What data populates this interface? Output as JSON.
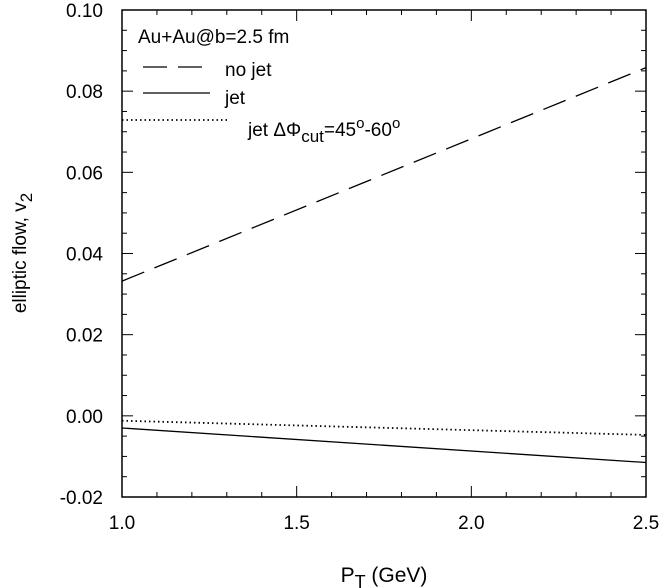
{
  "chart_data": {
    "type": "line",
    "annotation": "Au+Au@b=2.5 fm",
    "xlabel": {
      "main": "P",
      "sub": "T",
      "rest": " (GeV)"
    },
    "ylabel": {
      "main": "elliptic flow, v",
      "sub": "2"
    },
    "xlim": [
      1.0,
      2.5
    ],
    "ylim": [
      -0.02,
      0.1
    ],
    "xticks": [
      1.0,
      1.5,
      2.0,
      2.5
    ],
    "xtick_labels": [
      "1.0",
      "1.5",
      "2.0",
      "2.5"
    ],
    "yticks": [
      -0.02,
      0.0,
      0.02,
      0.04,
      0.06,
      0.08,
      0.1
    ],
    "ytick_labels": [
      "-0.02",
      "0.00",
      "0.02",
      "0.04",
      "0.06",
      "0.08",
      "0.10"
    ],
    "grid": false,
    "legend_position": "top-left",
    "series": [
      {
        "name": "no jet",
        "style": "dashed",
        "x": [
          1.0,
          2.5
        ],
        "y": [
          0.0332,
          0.0858
        ]
      },
      {
        "name": "jet",
        "style": "solid",
        "x": [
          1.0,
          2.5
        ],
        "y": [
          -0.003,
          -0.0115
        ]
      },
      {
        "name": "jet ΔΦ_cut=45°-60°",
        "style": "dotted",
        "x": [
          1.0,
          2.5
        ],
        "y": [
          -0.0012,
          -0.0047
        ]
      }
    ],
    "legend_labels": {
      "jet_dphi": {
        "a": "jet ΔΦ",
        "b": "cut",
        "c": "=45",
        "d": "o",
        "e": "-60",
        "f": "o"
      }
    }
  }
}
